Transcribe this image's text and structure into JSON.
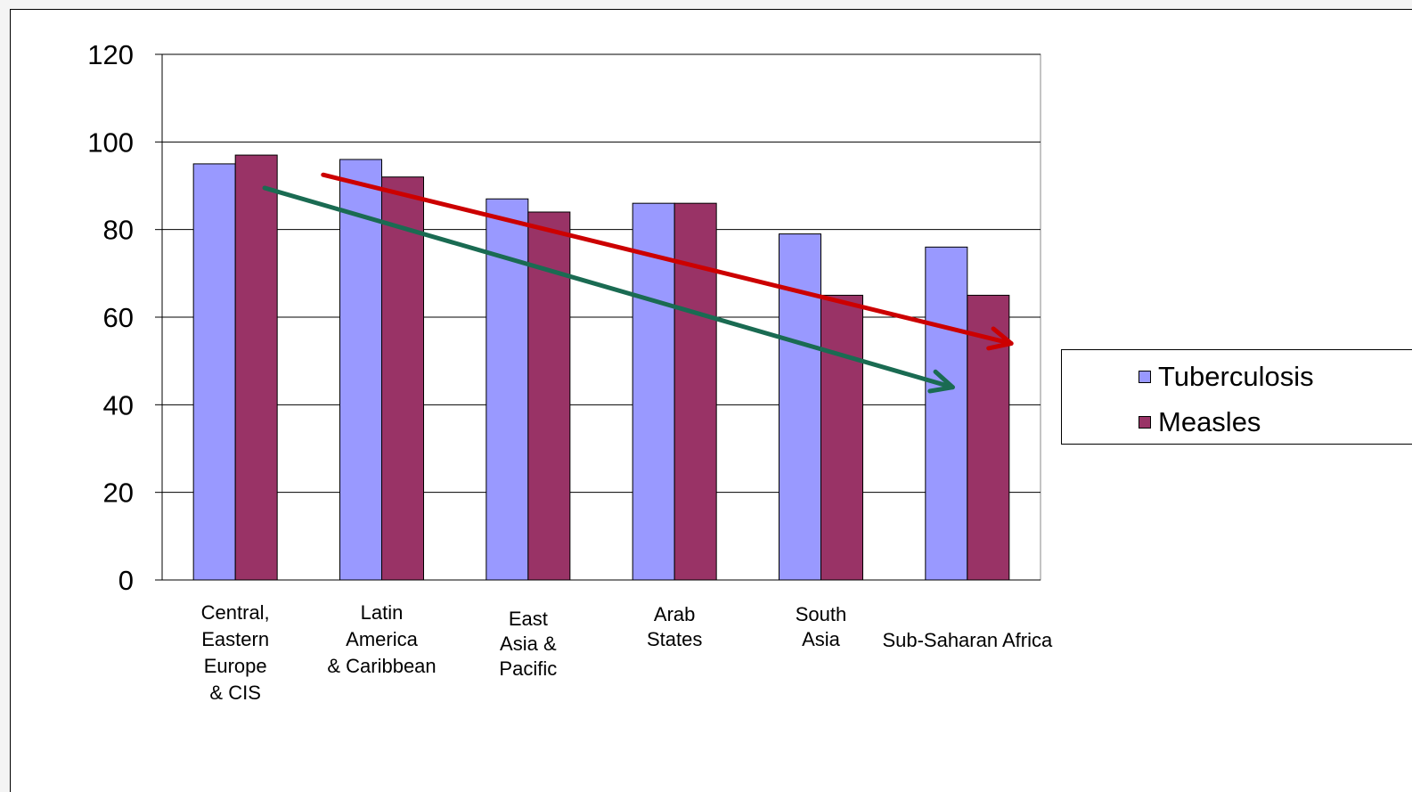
{
  "chart_data": {
    "type": "bar",
    "title": "",
    "xlabel": "",
    "ylabel": "",
    "ylim": [
      0,
      120
    ],
    "yticks": [
      "0",
      "20",
      "40",
      "60",
      "80",
      "100",
      "120"
    ],
    "categories": [
      [
        "Central,",
        "Eastern",
        "Europe",
        "& CIS"
      ],
      [
        "Latin",
        "America",
        "& Caribbean"
      ],
      [
        "East",
        "Asia &",
        "Pacific"
      ],
      [
        "Arab",
        "States"
      ],
      [
        "South",
        "Asia"
      ],
      [
        "Sub-Saharan Africa"
      ]
    ],
    "series": [
      {
        "name": "Tuberculosis",
        "color": "#9999ff",
        "values": [
          95,
          96,
          87,
          86,
          79,
          76
        ]
      },
      {
        "name": "Measles",
        "color": "#993366",
        "values": [
          97,
          92,
          84,
          86,
          65,
          65
        ]
      }
    ],
    "grid": true,
    "legend_position": "right",
    "annotations": [
      {
        "type": "arrow",
        "color": "#cc0000",
        "from": [
          0.6,
          92.5
        ],
        "to": [
          5.3,
          54
        ]
      },
      {
        "type": "arrow",
        "color": "#1a6b52",
        "from": [
          0.2,
          89.5
        ],
        "to": [
          4.9,
          44
        ]
      }
    ]
  }
}
